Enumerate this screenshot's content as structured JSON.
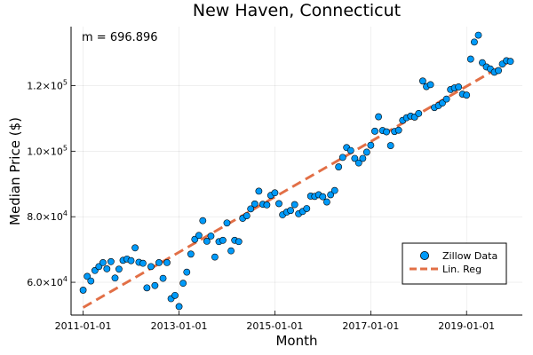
{
  "chart_data": {
    "type": "scatter",
    "title": "New Haven, Connecticut",
    "xlabel": "Month",
    "ylabel": "Median Price ($)",
    "annotation": "m = 696.896",
    "x_ticks": [
      "2011-01-01",
      "2013-01-01",
      "2015-01-01",
      "2017-01-01",
      "2019-01-01"
    ],
    "y_ticks": [
      {
        "value": 60000,
        "base": "6.0×10",
        "exp": "4"
      },
      {
        "value": 80000,
        "base": "8.0×10",
        "exp": "4"
      },
      {
        "value": 100000,
        "base": "1.0×10",
        "exp": "5"
      },
      {
        "value": 120000,
        "base": "1.2×10",
        "exp": "5"
      }
    ],
    "xlim": [
      "2010-10-01",
      "2020-03-01"
    ],
    "ylim": [
      50000,
      138000
    ],
    "grid": true,
    "legend_position": "bottom-right",
    "series": [
      {
        "name": "Zillow Data",
        "kind": "scatter",
        "color": "#009af9",
        "points": [
          [
            "2011-01-01",
            57600
          ],
          [
            "2011-02-01",
            61800
          ],
          [
            "2011-03-01",
            60400
          ],
          [
            "2011-04-01",
            63600
          ],
          [
            "2011-05-01",
            64800
          ],
          [
            "2011-06-01",
            66000
          ],
          [
            "2011-07-01",
            64100
          ],
          [
            "2011-08-01",
            66300
          ],
          [
            "2011-09-01",
            61300
          ],
          [
            "2011-10-01",
            64000
          ],
          [
            "2011-11-01",
            66700
          ],
          [
            "2011-12-01",
            67100
          ],
          [
            "2012-01-01",
            66600
          ],
          [
            "2012-02-01",
            70500
          ],
          [
            "2012-03-01",
            66100
          ],
          [
            "2012-04-01",
            65800
          ],
          [
            "2012-05-01",
            58300
          ],
          [
            "2012-06-01",
            64800
          ],
          [
            "2012-07-01",
            59000
          ],
          [
            "2012-08-01",
            66000
          ],
          [
            "2012-09-01",
            61200
          ],
          [
            "2012-10-01",
            66000
          ],
          [
            "2012-11-01",
            55000
          ],
          [
            "2012-12-01",
            56000
          ],
          [
            "2013-01-01",
            52600
          ],
          [
            "2013-02-01",
            59700
          ],
          [
            "2013-03-01",
            63100
          ],
          [
            "2013-04-01",
            68600
          ],
          [
            "2013-05-01",
            73100
          ],
          [
            "2013-06-01",
            74300
          ],
          [
            "2013-07-01",
            78800
          ],
          [
            "2013-08-01",
            72500
          ],
          [
            "2013-09-01",
            74100
          ],
          [
            "2013-10-01",
            67700
          ],
          [
            "2013-11-01",
            72400
          ],
          [
            "2013-12-01",
            72800
          ],
          [
            "2014-01-01",
            78100
          ],
          [
            "2014-02-01",
            69600
          ],
          [
            "2014-03-01",
            72800
          ],
          [
            "2014-04-01",
            72400
          ],
          [
            "2014-05-01",
            79500
          ],
          [
            "2014-06-01",
            80300
          ],
          [
            "2014-07-01",
            82400
          ],
          [
            "2014-08-01",
            83900
          ],
          [
            "2014-09-01",
            87800
          ],
          [
            "2014-10-01",
            83800
          ],
          [
            "2014-11-01",
            83600
          ],
          [
            "2014-12-01",
            86500
          ],
          [
            "2015-01-01",
            87300
          ],
          [
            "2015-02-01",
            84000
          ],
          [
            "2015-03-01",
            80600
          ],
          [
            "2015-04-01",
            81400
          ],
          [
            "2015-05-01",
            81900
          ],
          [
            "2015-06-01",
            83700
          ],
          [
            "2015-07-01",
            80900
          ],
          [
            "2015-08-01",
            81600
          ],
          [
            "2015-09-01",
            82500
          ],
          [
            "2015-10-01",
            86300
          ],
          [
            "2015-11-01",
            86200
          ],
          [
            "2015-12-01",
            86700
          ],
          [
            "2016-01-01",
            86100
          ],
          [
            "2016-02-01",
            84500
          ],
          [
            "2016-03-01",
            86700
          ],
          [
            "2016-04-01",
            88000
          ],
          [
            "2016-05-01",
            95200
          ],
          [
            "2016-06-01",
            98100
          ],
          [
            "2016-07-01",
            101100
          ],
          [
            "2016-08-01",
            100200
          ],
          [
            "2016-09-01",
            97800
          ],
          [
            "2016-10-01",
            96400
          ],
          [
            "2016-11-01",
            97800
          ],
          [
            "2016-12-01",
            99700
          ],
          [
            "2017-01-01",
            101800
          ],
          [
            "2017-02-01",
            106100
          ],
          [
            "2017-03-01",
            110500
          ],
          [
            "2017-04-01",
            106300
          ],
          [
            "2017-05-01",
            105900
          ],
          [
            "2017-06-01",
            101700
          ],
          [
            "2017-07-01",
            106000
          ],
          [
            "2017-08-01",
            106400
          ],
          [
            "2017-09-01",
            109400
          ],
          [
            "2017-10-01",
            110200
          ],
          [
            "2017-11-01",
            110700
          ],
          [
            "2017-12-01",
            110400
          ],
          [
            "2018-01-01",
            111500
          ],
          [
            "2018-02-01",
            121400
          ],
          [
            "2018-03-01",
            119700
          ],
          [
            "2018-04-01",
            120300
          ],
          [
            "2018-05-01",
            113300
          ],
          [
            "2018-06-01",
            113900
          ],
          [
            "2018-07-01",
            114700
          ],
          [
            "2018-08-01",
            115900
          ],
          [
            "2018-09-01",
            118800
          ],
          [
            "2018-10-01",
            119300
          ],
          [
            "2018-11-01",
            119600
          ],
          [
            "2018-12-01",
            117400
          ],
          [
            "2019-01-01",
            117100
          ],
          [
            "2019-02-01",
            128100
          ],
          [
            "2019-03-01",
            133300
          ],
          [
            "2019-04-01",
            135400
          ],
          [
            "2019-05-01",
            127000
          ],
          [
            "2019-06-01",
            125700
          ],
          [
            "2019-07-01",
            125100
          ],
          [
            "2019-08-01",
            124100
          ],
          [
            "2019-09-01",
            124600
          ],
          [
            "2019-10-01",
            126600
          ],
          [
            "2019-11-01",
            127600
          ],
          [
            "2019-12-01",
            127400
          ]
        ]
      },
      {
        "name": "Lin. Reg",
        "kind": "line",
        "style": "dashed",
        "color": "#e26f46",
        "points": [
          [
            "2011-01-01",
            52300
          ],
          [
            "2019-12-01",
            127500
          ]
        ]
      }
    ]
  }
}
